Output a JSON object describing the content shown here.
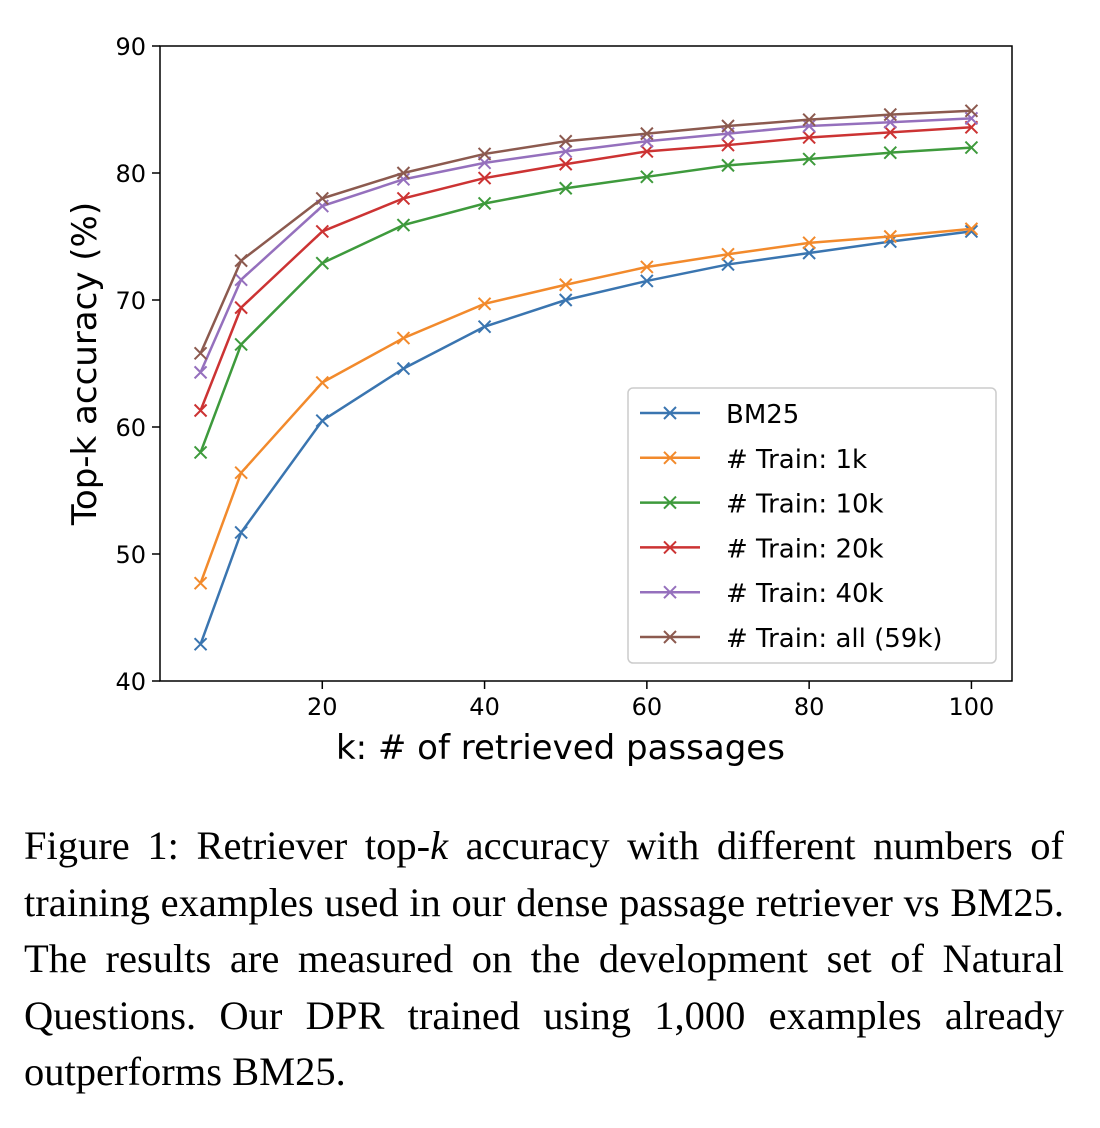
{
  "chart_data": {
    "type": "line",
    "xlabel": "k: # of retrieved passages",
    "ylabel": "Top-k accuracy (%)",
    "xlim": [
      0,
      105
    ],
    "ylim": [
      40,
      90
    ],
    "xticks": [
      20,
      40,
      60,
      80,
      100
    ],
    "yticks": [
      40,
      50,
      60,
      70,
      80,
      90
    ],
    "grid": false,
    "legend_position": "bottom-right",
    "marker": "x",
    "x": [
      5,
      10,
      20,
      30,
      40,
      50,
      60,
      70,
      80,
      90,
      100
    ],
    "series": [
      {
        "name": "BM25",
        "color": "#3a75b0",
        "values": [
          42.9,
          51.7,
          60.5,
          64.6,
          67.9,
          70.0,
          71.5,
          72.8,
          73.7,
          74.6,
          75.4
        ]
      },
      {
        "name": "# Train: 1k",
        "color": "#f28a2c",
        "values": [
          47.7,
          56.4,
          63.5,
          67.0,
          69.7,
          71.2,
          72.6,
          73.6,
          74.5,
          75.0,
          75.6
        ]
      },
      {
        "name": "# Train: 10k",
        "color": "#3e9a3c",
        "values": [
          58.0,
          66.5,
          72.9,
          75.9,
          77.6,
          78.8,
          79.7,
          80.6,
          81.1,
          81.6,
          82.0
        ]
      },
      {
        "name": "# Train: 20k",
        "color": "#cc3333",
        "values": [
          61.3,
          69.4,
          75.4,
          78.0,
          79.6,
          80.7,
          81.7,
          82.2,
          82.8,
          83.2,
          83.6
        ]
      },
      {
        "name": "# Train: 40k",
        "color": "#9570bd",
        "values": [
          64.3,
          71.6,
          77.4,
          79.5,
          80.8,
          81.7,
          82.5,
          83.1,
          83.7,
          84.0,
          84.3
        ]
      },
      {
        "name": "# Train: all (59k)",
        "color": "#8c5a4f",
        "values": [
          65.8,
          73.1,
          78.0,
          80.0,
          81.5,
          82.5,
          83.1,
          83.7,
          84.2,
          84.6,
          84.9
        ]
      }
    ]
  },
  "caption": {
    "prefix": "Figure 1: Retriever top-",
    "italic": "k",
    "suffix": " accuracy with different numbers of training examples used in our dense passage retriever vs BM25.  The results are measured on the development set of Natural Questions.  Our DPR trained using 1,000 examples already outperforms BM25."
  }
}
